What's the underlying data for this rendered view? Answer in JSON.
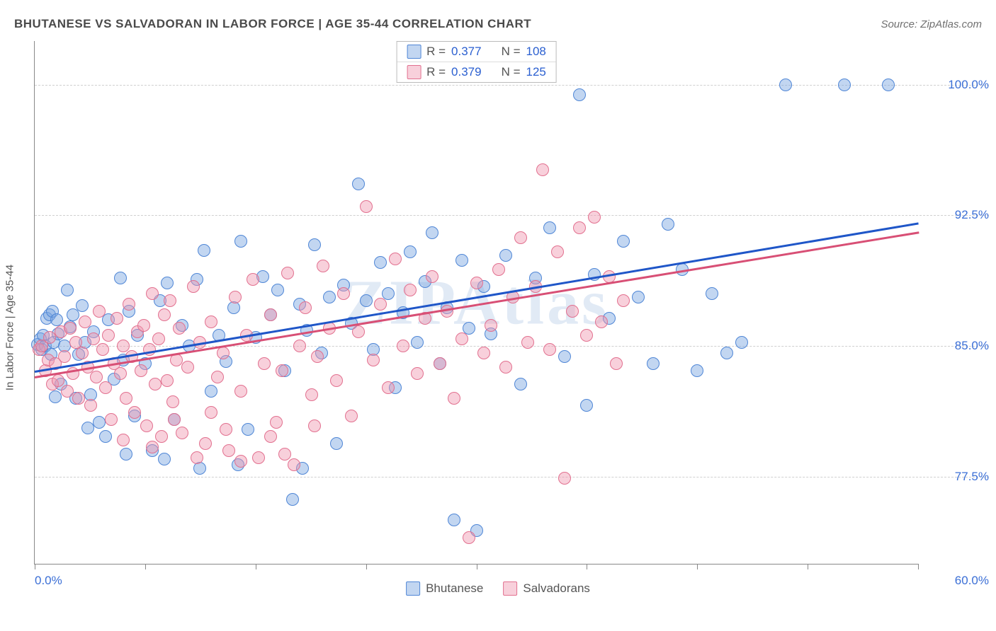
{
  "header": {
    "title": "BHUTANESE VS SALVADORAN IN LABOR FORCE | AGE 35-44 CORRELATION CHART",
    "source": "Source: ZipAtlas.com"
  },
  "ylabel": "In Labor Force | Age 35-44",
  "watermark": "ZIPAtlas",
  "chart": {
    "type": "scatter",
    "background_color": "#ffffff",
    "grid_color": "#cfcfcf",
    "axis_color": "#888888",
    "xlim": [
      0,
      60
    ],
    "ylim": [
      72.5,
      102.5
    ],
    "yticks": [
      77.5,
      85.0,
      92.5,
      100.0
    ],
    "ytick_labels": [
      "77.5%",
      "85.0%",
      "92.5%",
      "100.0%"
    ],
    "xticks": [
      0,
      7.5,
      15,
      22.5,
      30,
      37.5,
      45,
      52.5,
      60
    ],
    "xmin_label": "0.0%",
    "xmax_label": "60.0%",
    "ytick_label_color": "#3b6fd6",
    "xtick_label_color": "#3b6fd6",
    "marker_radius": 9,
    "marker_stroke_width": 1,
    "series": [
      {
        "name": "Bhutanese",
        "fill": "rgba(120,165,225,0.45)",
        "stroke": "#4f86d6",
        "trend_color": "#1f56c8",
        "trend": {
          "y_at_x0": 83.6,
          "y_at_x60": 92.1
        },
        "R": "0.377",
        "N": "108",
        "points": [
          [
            0.2,
            85.1
          ],
          [
            0.4,
            85.4
          ],
          [
            0.5,
            84.8
          ],
          [
            0.6,
            85.6
          ],
          [
            0.7,
            85.0
          ],
          [
            0.8,
            86.6
          ],
          [
            1.0,
            86.8
          ],
          [
            1.1,
            84.5
          ],
          [
            1.2,
            87.0
          ],
          [
            1.3,
            85.2
          ],
          [
            1.4,
            82.1
          ],
          [
            1.5,
            86.5
          ],
          [
            1.6,
            85.7
          ],
          [
            1.8,
            82.8
          ],
          [
            2.0,
            85.0
          ],
          [
            2.2,
            88.2
          ],
          [
            2.4,
            86.1
          ],
          [
            2.6,
            86.8
          ],
          [
            2.8,
            82.0
          ],
          [
            3.0,
            84.5
          ],
          [
            3.2,
            87.3
          ],
          [
            3.4,
            85.2
          ],
          [
            3.6,
            80.3
          ],
          [
            3.8,
            82.2
          ],
          [
            4.0,
            85.8
          ],
          [
            4.4,
            80.6
          ],
          [
            4.8,
            79.8
          ],
          [
            5.0,
            86.5
          ],
          [
            5.4,
            83.1
          ],
          [
            5.8,
            88.9
          ],
          [
            6.0,
            84.2
          ],
          [
            6.4,
            87.0
          ],
          [
            6.8,
            81.0
          ],
          [
            7.0,
            85.6
          ],
          [
            7.5,
            84.0
          ],
          [
            8.0,
            79.0
          ],
          [
            8.5,
            87.6
          ],
          [
            9.0,
            88.6
          ],
          [
            9.5,
            80.8
          ],
          [
            10.0,
            86.2
          ],
          [
            10.5,
            85.0
          ],
          [
            11.0,
            88.8
          ],
          [
            11.5,
            90.5
          ],
          [
            12.0,
            82.4
          ],
          [
            12.5,
            85.6
          ],
          [
            13.0,
            84.1
          ],
          [
            13.5,
            87.2
          ],
          [
            14.0,
            91.0
          ],
          [
            14.5,
            80.2
          ],
          [
            15.0,
            85.5
          ],
          [
            15.5,
            89.0
          ],
          [
            16.0,
            86.8
          ],
          [
            16.5,
            88.2
          ],
          [
            17.0,
            83.6
          ],
          [
            17.5,
            76.2
          ],
          [
            18.0,
            87.4
          ],
          [
            18.5,
            85.9
          ],
          [
            19.0,
            90.8
          ],
          [
            19.5,
            84.6
          ],
          [
            20.0,
            87.8
          ],
          [
            20.5,
            79.4
          ],
          [
            21.0,
            88.5
          ],
          [
            21.5,
            86.3
          ],
          [
            22.0,
            94.3
          ],
          [
            22.5,
            87.6
          ],
          [
            23.0,
            84.8
          ],
          [
            23.5,
            89.8
          ],
          [
            24.0,
            88.0
          ],
          [
            24.5,
            82.6
          ],
          [
            25.0,
            86.9
          ],
          [
            25.5,
            90.4
          ],
          [
            26.0,
            85.2
          ],
          [
            26.5,
            88.7
          ],
          [
            27.0,
            91.5
          ],
          [
            27.5,
            84.0
          ],
          [
            28.0,
            87.2
          ],
          [
            28.5,
            75.0
          ],
          [
            29.0,
            89.9
          ],
          [
            29.5,
            86.0
          ],
          [
            30.0,
            74.4
          ],
          [
            30.5,
            88.4
          ],
          [
            31.0,
            85.7
          ],
          [
            32.0,
            90.2
          ],
          [
            33.0,
            82.8
          ],
          [
            34.0,
            88.9
          ],
          [
            35.0,
            91.8
          ],
          [
            36.0,
            84.4
          ],
          [
            37.0,
            99.4
          ],
          [
            37.5,
            81.6
          ],
          [
            38.0,
            89.1
          ],
          [
            39.0,
            86.6
          ],
          [
            40.0,
            91.0
          ],
          [
            41.0,
            87.8
          ],
          [
            42.0,
            84.0
          ],
          [
            43.0,
            92.0
          ],
          [
            44.0,
            89.4
          ],
          [
            45.0,
            83.6
          ],
          [
            46.0,
            88.0
          ],
          [
            47.0,
            84.6
          ],
          [
            48.0,
            85.2
          ],
          [
            51.0,
            100.0
          ],
          [
            55.0,
            100.0
          ],
          [
            58.0,
            100.0
          ],
          [
            18.2,
            78.0
          ],
          [
            13.8,
            78.2
          ],
          [
            8.8,
            78.5
          ],
          [
            6.2,
            78.8
          ],
          [
            11.2,
            78.0
          ]
        ]
      },
      {
        "name": "Salvadorans",
        "fill": "rgba(240,150,175,0.45)",
        "stroke": "#e2708f",
        "trend_color": "#d84f75",
        "trend": {
          "y_at_x0": 83.3,
          "y_at_x60": 91.6
        },
        "R": "0.379",
        "N": "125",
        "points": [
          [
            0.3,
            84.8
          ],
          [
            0.5,
            85.0
          ],
          [
            0.7,
            83.6
          ],
          [
            0.9,
            84.2
          ],
          [
            1.0,
            85.5
          ],
          [
            1.2,
            82.8
          ],
          [
            1.4,
            84.0
          ],
          [
            1.6,
            83.0
          ],
          [
            1.8,
            85.8
          ],
          [
            2.0,
            84.4
          ],
          [
            2.2,
            82.4
          ],
          [
            2.4,
            86.0
          ],
          [
            2.6,
            83.4
          ],
          [
            2.8,
            85.2
          ],
          [
            3.0,
            82.0
          ],
          [
            3.2,
            84.6
          ],
          [
            3.4,
            86.4
          ],
          [
            3.6,
            83.8
          ],
          [
            3.8,
            81.6
          ],
          [
            4.0,
            85.4
          ],
          [
            4.2,
            83.2
          ],
          [
            4.4,
            87.0
          ],
          [
            4.6,
            84.8
          ],
          [
            4.8,
            82.6
          ],
          [
            5.0,
            85.6
          ],
          [
            5.2,
            80.8
          ],
          [
            5.4,
            84.0
          ],
          [
            5.6,
            86.6
          ],
          [
            5.8,
            83.4
          ],
          [
            6.0,
            85.0
          ],
          [
            6.2,
            82.0
          ],
          [
            6.4,
            87.4
          ],
          [
            6.6,
            84.4
          ],
          [
            6.8,
            81.2
          ],
          [
            7.0,
            85.8
          ],
          [
            7.2,
            83.6
          ],
          [
            7.4,
            86.2
          ],
          [
            7.6,
            80.4
          ],
          [
            7.8,
            84.8
          ],
          [
            8.0,
            88.0
          ],
          [
            8.2,
            82.8
          ],
          [
            8.4,
            85.4
          ],
          [
            8.6,
            79.8
          ],
          [
            8.8,
            86.8
          ],
          [
            9.0,
            83.0
          ],
          [
            9.2,
            87.6
          ],
          [
            9.4,
            81.8
          ],
          [
            9.6,
            84.2
          ],
          [
            9.8,
            86.0
          ],
          [
            10.0,
            80.0
          ],
          [
            10.4,
            83.8
          ],
          [
            10.8,
            88.4
          ],
          [
            11.2,
            85.2
          ],
          [
            11.6,
            79.4
          ],
          [
            12.0,
            86.4
          ],
          [
            12.4,
            83.2
          ],
          [
            12.8,
            84.6
          ],
          [
            13.2,
            79.0
          ],
          [
            13.6,
            87.8
          ],
          [
            14.0,
            82.4
          ],
          [
            14.4,
            85.6
          ],
          [
            14.8,
            88.8
          ],
          [
            15.2,
            78.6
          ],
          [
            15.6,
            84.0
          ],
          [
            16.0,
            86.8
          ],
          [
            16.4,
            80.6
          ],
          [
            16.8,
            83.6
          ],
          [
            17.2,
            89.2
          ],
          [
            17.6,
            78.2
          ],
          [
            18.0,
            85.0
          ],
          [
            18.4,
            87.2
          ],
          [
            18.8,
            82.2
          ],
          [
            19.2,
            84.4
          ],
          [
            19.6,
            89.6
          ],
          [
            20.0,
            86.0
          ],
          [
            20.5,
            83.0
          ],
          [
            21.0,
            88.0
          ],
          [
            21.5,
            81.0
          ],
          [
            22.0,
            85.8
          ],
          [
            22.5,
            93.0
          ],
          [
            23.0,
            84.2
          ],
          [
            23.5,
            87.4
          ],
          [
            24.0,
            82.6
          ],
          [
            24.5,
            90.0
          ],
          [
            25.0,
            85.0
          ],
          [
            25.5,
            88.2
          ],
          [
            26.0,
            83.4
          ],
          [
            26.5,
            86.6
          ],
          [
            27.0,
            89.0
          ],
          [
            27.5,
            84.0
          ],
          [
            28.0,
            87.0
          ],
          [
            28.5,
            82.0
          ],
          [
            29.0,
            85.4
          ],
          [
            29.5,
            74.0
          ],
          [
            30.0,
            88.6
          ],
          [
            30.5,
            84.6
          ],
          [
            31.0,
            86.2
          ],
          [
            31.5,
            89.4
          ],
          [
            32.0,
            83.8
          ],
          [
            32.5,
            87.8
          ],
          [
            33.0,
            91.2
          ],
          [
            33.5,
            85.2
          ],
          [
            34.0,
            88.4
          ],
          [
            34.5,
            95.1
          ],
          [
            35.0,
            84.8
          ],
          [
            35.5,
            90.4
          ],
          [
            36.0,
            77.4
          ],
          [
            36.5,
            87.0
          ],
          [
            37.0,
            91.8
          ],
          [
            37.5,
            85.6
          ],
          [
            38.0,
            92.4
          ],
          [
            38.5,
            86.4
          ],
          [
            39.0,
            89.0
          ],
          [
            39.5,
            84.0
          ],
          [
            40.0,
            87.6
          ],
          [
            17.0,
            78.8
          ],
          [
            14.0,
            78.4
          ],
          [
            11.0,
            78.6
          ],
          [
            8.0,
            79.2
          ],
          [
            6.0,
            79.6
          ],
          [
            13.0,
            80.2
          ],
          [
            16.0,
            79.8
          ],
          [
            19.0,
            80.4
          ],
          [
            9.5,
            80.8
          ],
          [
            12.0,
            81.2
          ]
        ]
      }
    ]
  },
  "legend_top": {
    "rows": [
      {
        "swatch_fill": "rgba(120,165,225,0.45)",
        "swatch_stroke": "#4f86d6",
        "R_label": "R =",
        "R": "0.377",
        "N_label": "N =",
        "N": "108"
      },
      {
        "swatch_fill": "rgba(240,150,175,0.45)",
        "swatch_stroke": "#e2708f",
        "R_label": "R =",
        "R": "0.379",
        "N_label": "N =",
        "N": "125"
      }
    ]
  },
  "legend_bottom": {
    "items": [
      {
        "swatch_fill": "rgba(120,165,225,0.45)",
        "swatch_stroke": "#4f86d6",
        "label": "Bhutanese"
      },
      {
        "swatch_fill": "rgba(240,150,175,0.45)",
        "swatch_stroke": "#e2708f",
        "label": "Salvadorans"
      }
    ]
  }
}
